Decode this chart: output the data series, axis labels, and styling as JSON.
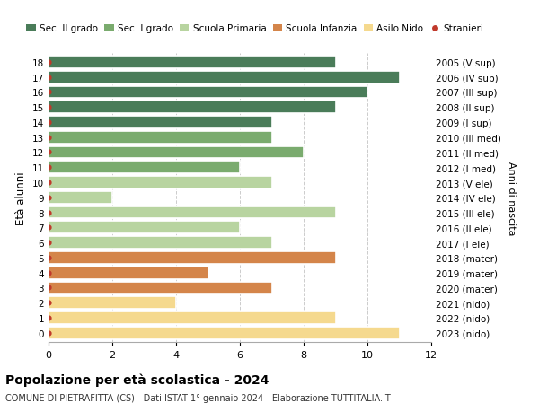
{
  "ages": [
    18,
    17,
    16,
    15,
    14,
    13,
    12,
    11,
    10,
    9,
    8,
    7,
    6,
    5,
    4,
    3,
    2,
    1,
    0
  ],
  "values": [
    9,
    11,
    10,
    9,
    7,
    7,
    8,
    6,
    7,
    2,
    9,
    6,
    7,
    9,
    5,
    7,
    4,
    9,
    11
  ],
  "right_labels": [
    "2005 (V sup)",
    "2006 (IV sup)",
    "2007 (III sup)",
    "2008 (II sup)",
    "2009 (I sup)",
    "2010 (III med)",
    "2011 (II med)",
    "2012 (I med)",
    "2013 (V ele)",
    "2014 (IV ele)",
    "2015 (III ele)",
    "2016 (II ele)",
    "2017 (I ele)",
    "2018 (mater)",
    "2019 (mater)",
    "2020 (mater)",
    "2021 (nido)",
    "2022 (nido)",
    "2023 (nido)"
  ],
  "bar_colors": [
    "#4a7c59",
    "#4a7c59",
    "#4a7c59",
    "#4a7c59",
    "#4a7c59",
    "#7aab6e",
    "#7aab6e",
    "#7aab6e",
    "#b8d4a0",
    "#b8d4a0",
    "#b8d4a0",
    "#b8d4a0",
    "#b8d4a0",
    "#d4854a",
    "#d4854a",
    "#d4854a",
    "#f5d98e",
    "#f5d98e",
    "#f5d98e"
  ],
  "stranieri_marker_color": "#c0392b",
  "title": "Popolazione per età scolastica - 2024",
  "subtitle": "COMUNE DI PIETRAFITTA (CS) - Dati ISTAT 1° gennaio 2024 - Elaborazione TUTTITALIA.IT",
  "ylabel": "Età alunni",
  "right_ylabel": "Anni di nascita",
  "xlim": [
    0,
    12
  ],
  "xticks": [
    0,
    2,
    4,
    6,
    8,
    10,
    12
  ],
  "legend_labels": [
    "Sec. II grado",
    "Sec. I grado",
    "Scuola Primaria",
    "Scuola Infanzia",
    "Asilo Nido",
    "Stranieri"
  ],
  "legend_colors": [
    "#4a7c59",
    "#7aab6e",
    "#b8d4a0",
    "#d4854a",
    "#f5d98e",
    "#c0392b"
  ],
  "background_color": "#ffffff",
  "grid_color": "#cccccc"
}
